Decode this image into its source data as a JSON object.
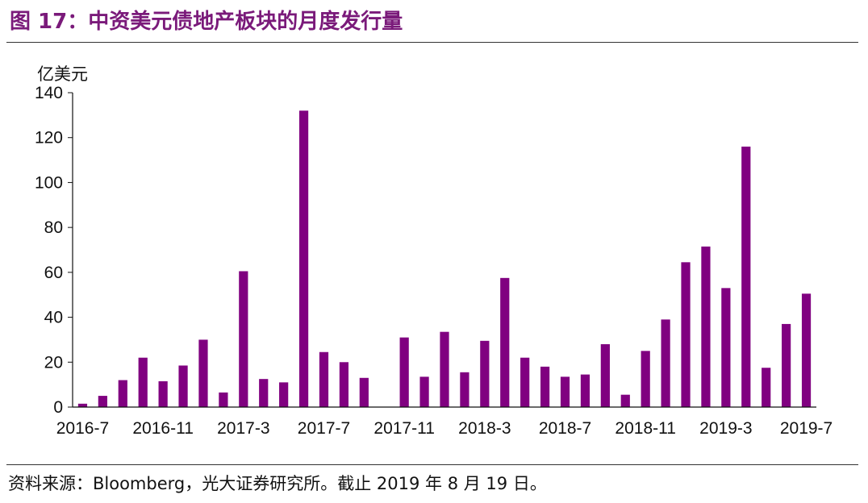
{
  "header": {
    "title": "图 17：中资美元债地产板块的月度发行量"
  },
  "footer": {
    "source": "资料来源：Bloomberg，光大证券研究所。截止 2019 年 8 月 19 日。"
  },
  "colors": {
    "bar": "#800080",
    "title": "#7a1a7a"
  },
  "chart_data": {
    "type": "bar",
    "title": "",
    "xlabel": "",
    "ylabel": "亿美元",
    "ylim": [
      0,
      140
    ],
    "yticks": [
      0,
      20,
      40,
      60,
      80,
      100,
      120,
      140
    ],
    "grid": false,
    "categories": [
      "2016-7",
      "2016-8",
      "2016-9",
      "2016-10",
      "2016-11",
      "2016-12",
      "2017-1",
      "2017-2",
      "2017-3",
      "2017-4",
      "2017-5",
      "2017-6",
      "2017-7",
      "2017-8",
      "2017-9",
      "2017-10",
      "2017-11",
      "2017-12",
      "2018-1",
      "2018-2",
      "2018-3",
      "2018-4",
      "2018-5",
      "2018-6",
      "2018-7",
      "2018-8",
      "2018-9",
      "2018-10",
      "2018-11",
      "2018-12",
      "2019-1",
      "2019-2",
      "2019-3",
      "2019-4",
      "2019-5",
      "2019-6",
      "2019-7"
    ],
    "xtick_labels": [
      "2016-7",
      "2016-11",
      "2017-3",
      "2017-7",
      "2017-11",
      "2018-3",
      "2018-7",
      "2018-11",
      "2019-3",
      "2019-7"
    ],
    "series": [
      {
        "values": [
          1.5,
          5,
          12,
          22,
          11.5,
          18.5,
          30,
          6.5,
          60.5,
          12.5,
          11,
          132,
          24.5,
          20,
          13,
          0,
          31,
          13.5,
          33.5,
          15.5,
          29.5,
          57.5,
          22,
          18,
          13.5,
          14.5,
          28,
          5.5,
          25,
          39,
          64.5,
          71.5,
          53,
          116,
          17.5,
          37,
          50.5
        ]
      }
    ]
  }
}
